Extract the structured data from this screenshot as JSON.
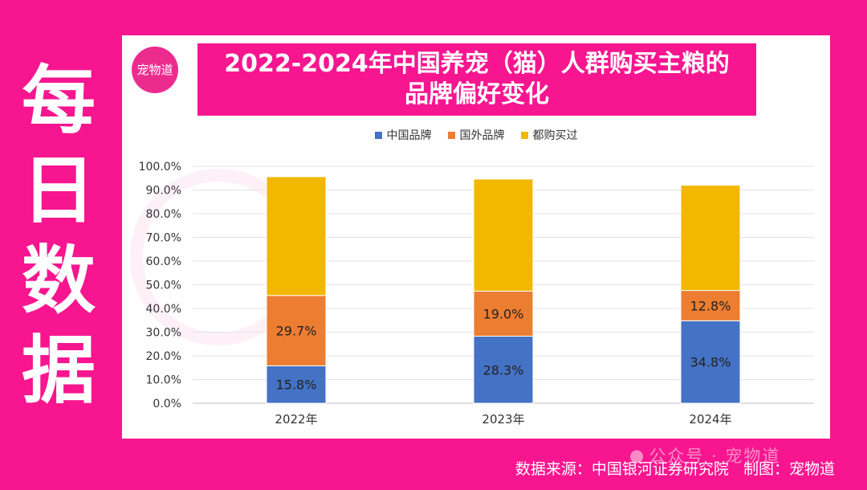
{
  "side_title": [
    "每",
    "日",
    "数",
    "据"
  ],
  "logo_text": "宠物道",
  "title_lines": [
    "2022-2024年中国养宠（猫）人群购买主粮的",
    "品牌偏好变化"
  ],
  "watermark": "公众号 · 宠物道",
  "source": "数据来源：中国银河证券研究院   制图：宠物道",
  "chart_data": {
    "type": "bar",
    "stacked": true,
    "categories": [
      "2022年",
      "2023年",
      "2024年"
    ],
    "series": [
      {
        "name": "中国品牌",
        "color": "#4472c4",
        "values": [
          15.8,
          28.3,
          34.8
        ],
        "labels": [
          "15.8%",
          "28.3%",
          "34.8%"
        ]
      },
      {
        "name": "国外品牌",
        "color": "#ed7d31",
        "values": [
          29.7,
          19.0,
          12.8
        ],
        "labels": [
          "29.7%",
          "19.0%",
          "12.8%"
        ]
      },
      {
        "name": "都购买过",
        "color": "#f2b800",
        "values": [
          50.1,
          47.3,
          44.4
        ],
        "labels": [
          "",
          "",
          ""
        ]
      }
    ],
    "ylim": [
      0,
      100
    ],
    "yticks": [
      "0.0%",
      "10.0%",
      "20.0%",
      "30.0%",
      "40.0%",
      "50.0%",
      "60.0%",
      "70.0%",
      "80.0%",
      "90.0%",
      "100.0%"
    ],
    "grid": true,
    "legend": "top"
  }
}
